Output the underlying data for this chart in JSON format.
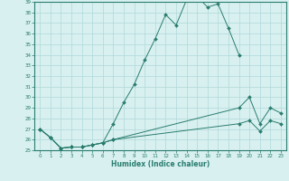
{
  "title": "",
  "xlabel": "Humidex (Indice chaleur)",
  "xlim": [
    -0.5,
    23.5
  ],
  "ylim": [
    25,
    39
  ],
  "yticks": [
    25,
    26,
    27,
    28,
    29,
    30,
    31,
    32,
    33,
    34,
    35,
    36,
    37,
    38,
    39
  ],
  "xticks": [
    0,
    1,
    2,
    3,
    4,
    5,
    6,
    7,
    8,
    9,
    10,
    11,
    12,
    13,
    14,
    15,
    16,
    17,
    18,
    19,
    20,
    21,
    22,
    23
  ],
  "line_color": "#2a7d6e",
  "bg_color": "#d8f0f0",
  "grid_color": "#b0d8d8",
  "line1_x": [
    0,
    1,
    2,
    3,
    4,
    5,
    6,
    7,
    8,
    9,
    10,
    11,
    12,
    13,
    14,
    15,
    16,
    17,
    18,
    19
  ],
  "line1_y": [
    27.0,
    26.2,
    25.2,
    25.3,
    25.3,
    25.5,
    25.7,
    27.5,
    29.5,
    31.2,
    33.5,
    35.5,
    37.8,
    36.8,
    39.2,
    39.5,
    38.5,
    38.8,
    36.5,
    34.0
  ],
  "line2_x": [
    0,
    1,
    2,
    3,
    4,
    5,
    6,
    7,
    19,
    20,
    21,
    22,
    23
  ],
  "line2_y": [
    27.0,
    26.2,
    25.2,
    25.3,
    25.3,
    25.5,
    25.7,
    26.0,
    29.0,
    30.0,
    27.5,
    29.0,
    28.5
  ],
  "line3_x": [
    0,
    1,
    2,
    3,
    4,
    5,
    6,
    7,
    19,
    20,
    21,
    22,
    23
  ],
  "line3_y": [
    27.0,
    26.2,
    25.2,
    25.3,
    25.3,
    25.5,
    25.7,
    26.0,
    27.5,
    27.8,
    26.8,
    27.8,
    27.5
  ]
}
